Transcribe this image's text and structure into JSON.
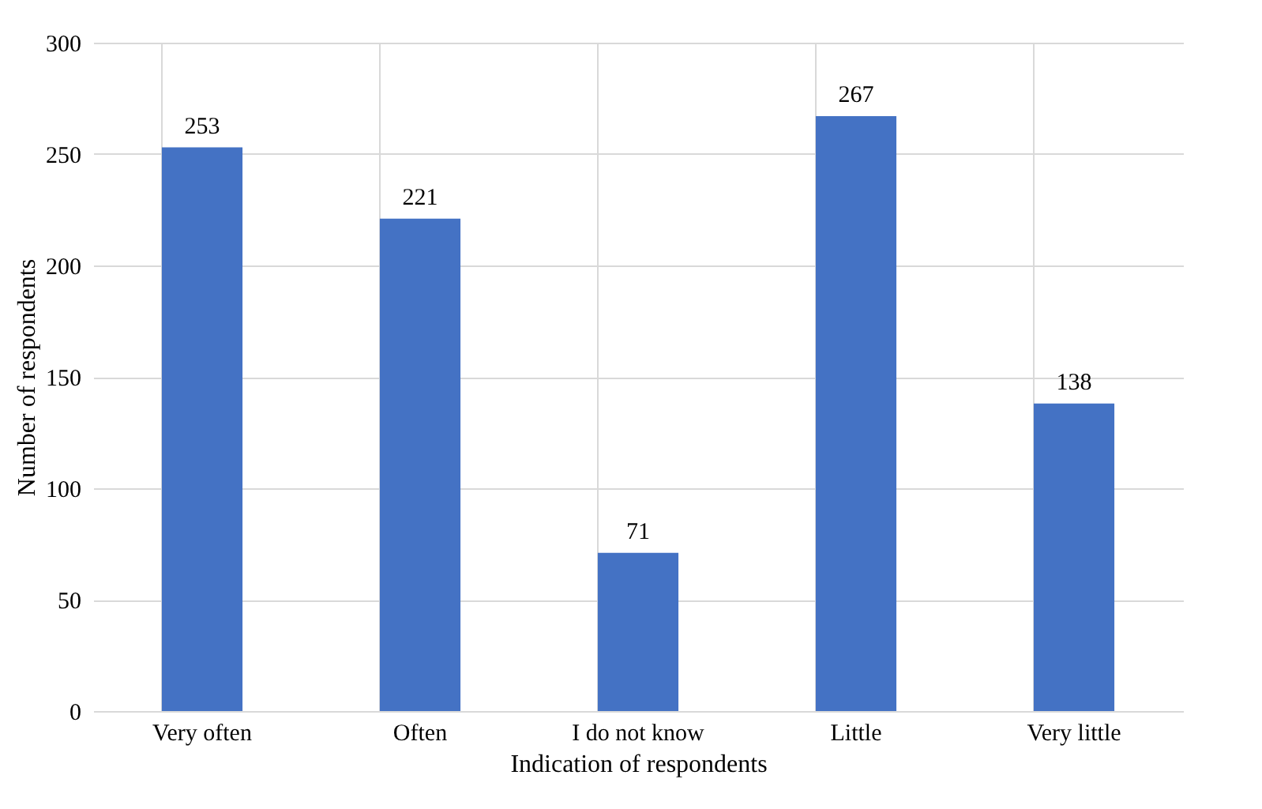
{
  "chart_data": {
    "type": "bar",
    "xlabel": "Indication of respondents",
    "ylabel": "Number of respondents",
    "categories": [
      "Very often",
      "Often",
      "I do not know",
      "Little",
      "Very little"
    ],
    "values": [
      253,
      221,
      71,
      267,
      138
    ],
    "color": "#4472c4",
    "ylim": [
      0,
      300
    ],
    "yticks": [
      0,
      50,
      100,
      150,
      200,
      250,
      300
    ],
    "grid": true,
    "data_labels": true
  }
}
